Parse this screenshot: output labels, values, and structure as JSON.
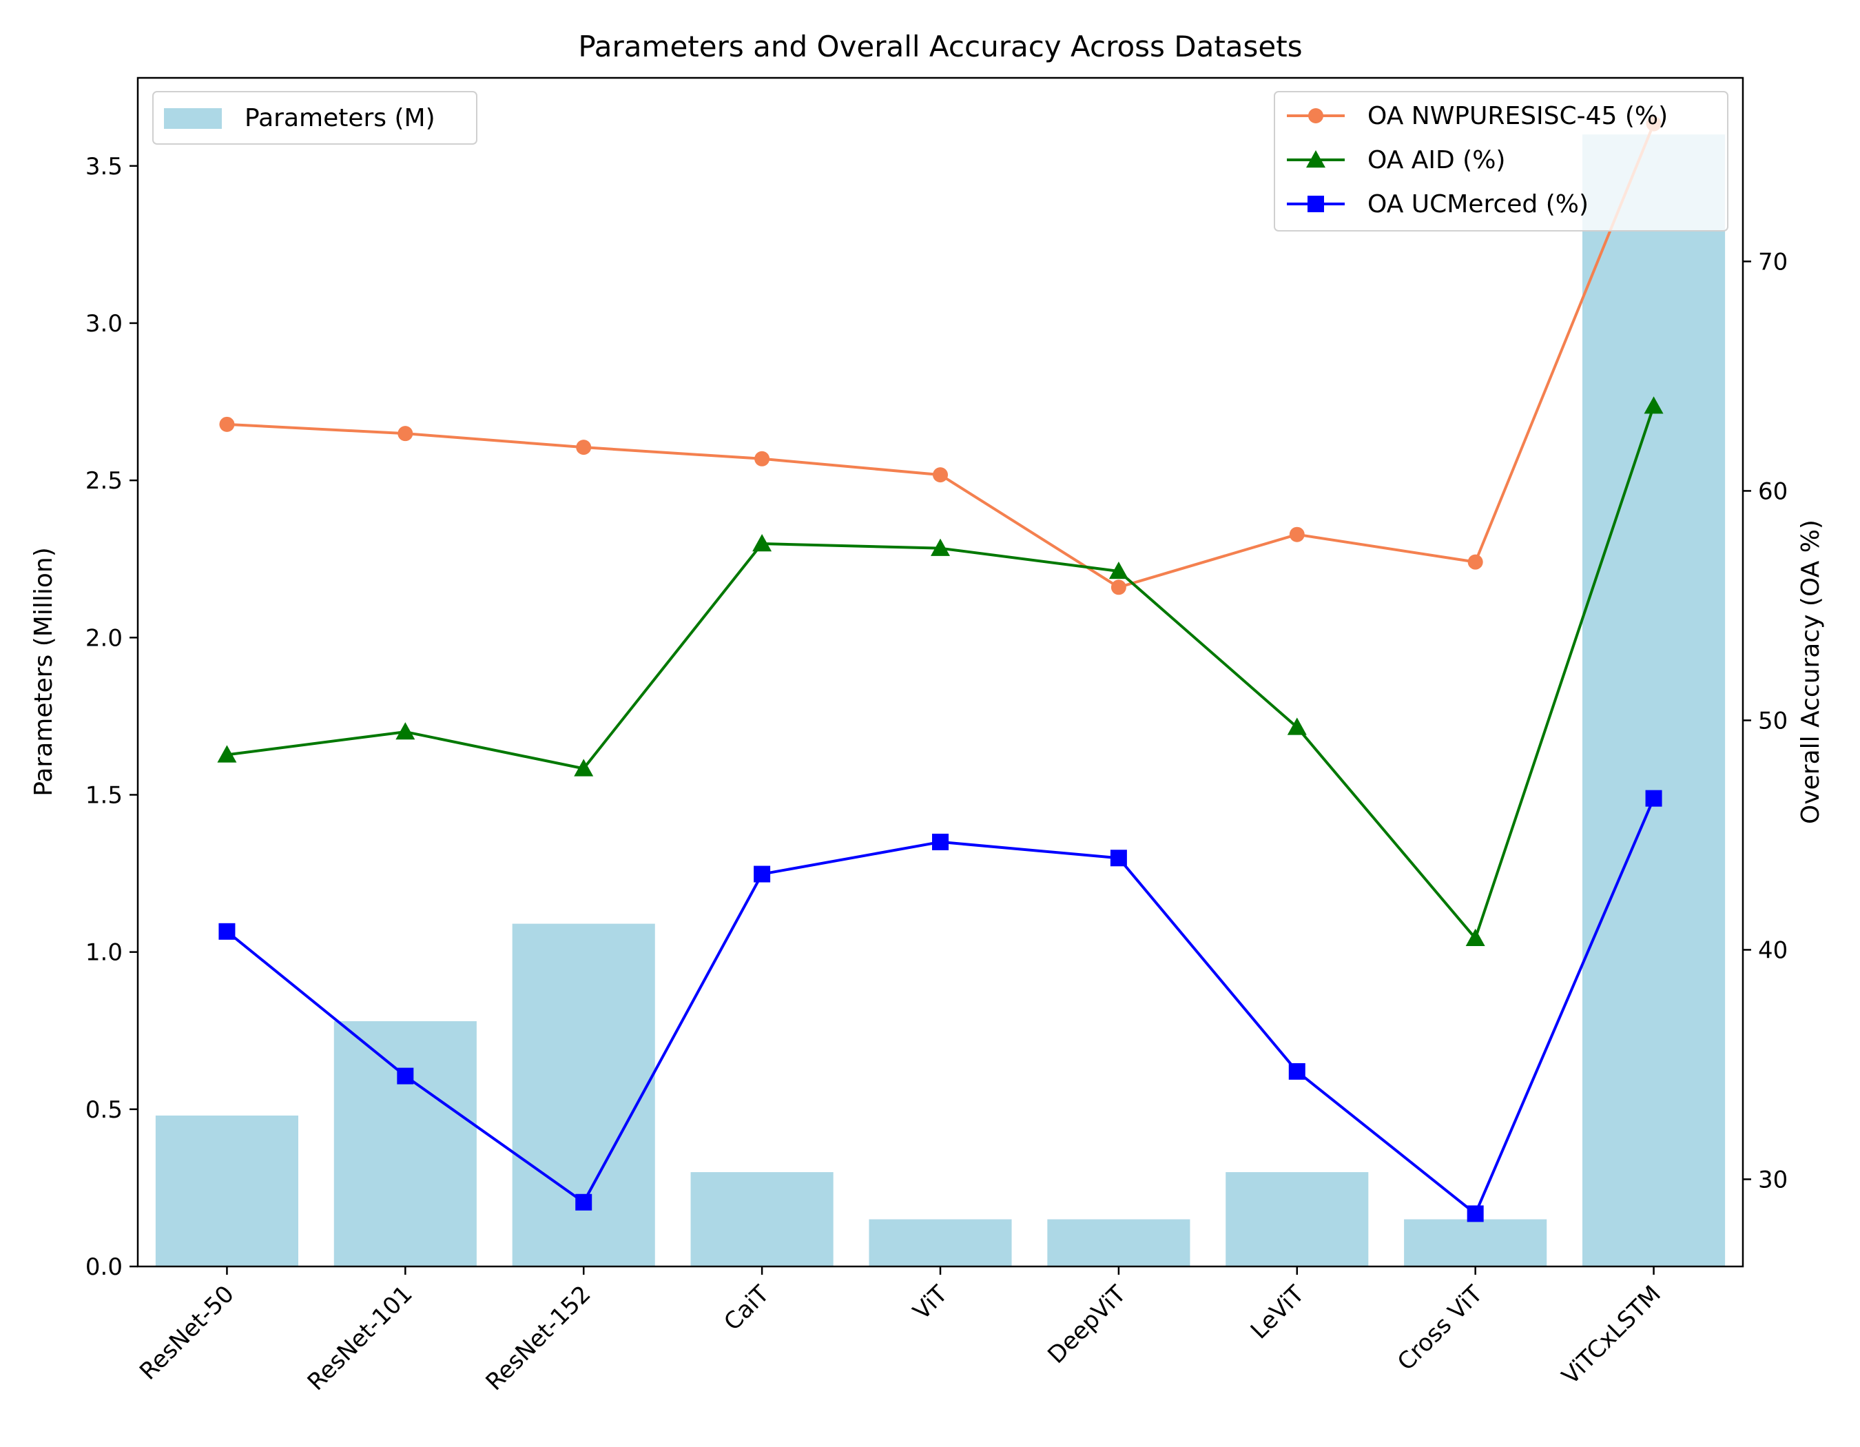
{
  "chart_data": {
    "type": "bar+line",
    "title": "Parameters and Overall Accuracy Across Datasets",
    "categories": [
      "ResNet-50",
      "ResNet-101",
      "ResNet-152",
      "CaiT",
      "ViT",
      "DeepViT",
      "LeViT",
      "Cross ViT",
      "ViTCxLSTM"
    ],
    "bars": {
      "name": "Parameters (M)",
      "color": "#add8e6",
      "values": [
        0.48,
        0.78,
        1.09,
        0.3,
        0.15,
        0.15,
        0.3,
        0.15,
        3.6
      ]
    },
    "series": [
      {
        "name": "OA NWPURESISC-45 (%)",
        "color": "#f4804f",
        "marker": "circle",
        "values": [
          62.9,
          62.5,
          61.9,
          61.4,
          60.7,
          55.8,
          58.1,
          56.9,
          76.0
        ]
      },
      {
        "name": "OA AID (%)",
        "color": "#007800",
        "marker": "triangle",
        "values": [
          48.5,
          49.5,
          47.9,
          57.7,
          57.5,
          56.5,
          49.7,
          40.5,
          63.7
        ]
      },
      {
        "name": "OA UCMerced (%)",
        "color": "#0000ff",
        "marker": "square",
        "values": [
          40.8,
          34.5,
          29.0,
          43.3,
          44.7,
          44.0,
          34.7,
          28.5,
          46.6
        ]
      }
    ],
    "left_axis": {
      "label": "Parameters (Million)",
      "range": [
        0,
        3.78
      ],
      "ticks": [
        0.0,
        0.5,
        1.0,
        1.5,
        2.0,
        2.5,
        3.0,
        3.5
      ],
      "tick_labels": [
        "0.0",
        "0.5",
        "1.0",
        "1.5",
        "2.0",
        "2.5",
        "3.0",
        "3.5"
      ]
    },
    "right_axis": {
      "label": "Overall Accuracy (OA %)",
      "range": [
        26.2,
        78.0
      ],
      "ticks": [
        30,
        40,
        50,
        60,
        70
      ],
      "tick_labels": [
        "30",
        "40",
        "50",
        "60",
        "70"
      ]
    },
    "legends": {
      "bars_position": "upper-left",
      "lines_position": "upper-right"
    },
    "grid": false
  }
}
